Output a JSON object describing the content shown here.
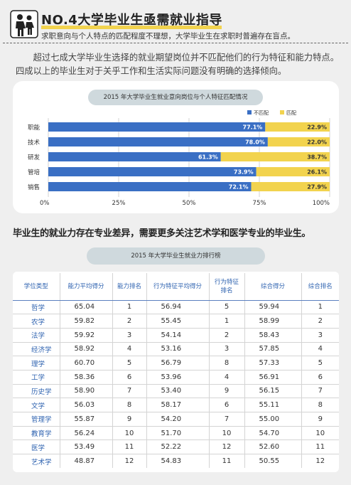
{
  "header": {
    "title": "NO.4大学毕业生亟需就业指导",
    "subtitle": "求职意向与个人特点的匹配程度不理想，大学毕业生在求职时普遍存在盲点。"
  },
  "intro": "超过七成大学毕业生选择的就业期望岗位并不匹配他们的行为特征和能力特点。四成以上的毕业生对于关乎工作和生活实际问题没有明确的选择倾向。",
  "colors": {
    "mismatch": "#3a6fc4",
    "match": "#f2d34e",
    "header_text": "#2f63b0"
  },
  "chart_data": {
    "type": "bar",
    "orientation": "horizontal",
    "stacked": true,
    "title": "2015 年大学毕业生就业意向岗位与个人特征匹配情况",
    "legend_position": "top-right",
    "categories": [
      "职能",
      "技术",
      "研发",
      "管培",
      "销售"
    ],
    "series": [
      {
        "name": "不匹配",
        "values": [
          77.1,
          78.0,
          61.3,
          73.9,
          72.1
        ],
        "labels": [
          "77.1%",
          "78.0%",
          "61.3%",
          "73.9%",
          "72.1%"
        ]
      },
      {
        "name": "匹配",
        "values": [
          22.9,
          22.0,
          38.7,
          26.1,
          27.9
        ],
        "labels": [
          "22.9%",
          "22.0%",
          "38.7%",
          "26.1%",
          "27.9%"
        ]
      }
    ],
    "xlim": [
      0,
      100
    ],
    "xticks": [
      "0%",
      "25%",
      "50%",
      "75%",
      "100%"
    ],
    "grid": true
  },
  "section_heading": "毕业生的就业力存在专业差异，需要更多关注艺术学和医学专业的毕业生。",
  "table": {
    "title": "2015 年大学毕业生就业力排行榜",
    "headers": [
      "学位类型",
      "能力平均得分",
      "能力排名",
      "行为特征平均得分",
      "行为特征\n排名",
      "综合得分",
      "综合排名"
    ],
    "rows": [
      [
        "哲学",
        "65.04",
        "1",
        "56.94",
        "5",
        "59.94",
        "1"
      ],
      [
        "农学",
        "59.82",
        "2",
        "55.45",
        "1",
        "58.99",
        "2"
      ],
      [
        "法学",
        "59.92",
        "3",
        "54.14",
        "2",
        "58.43",
        "3"
      ],
      [
        "经济学",
        "58.92",
        "4",
        "53.16",
        "3",
        "57.85",
        "4"
      ],
      [
        "理学",
        "60.70",
        "5",
        "56.79",
        "8",
        "57.33",
        "5"
      ],
      [
        "工学",
        "58.36",
        "6",
        "53.96",
        "4",
        "56.91",
        "6"
      ],
      [
        "历史学",
        "58.90",
        "7",
        "53.40",
        "9",
        "56.15",
        "7"
      ],
      [
        "文学",
        "56.03",
        "8",
        "58.17",
        "6",
        "55.11",
        "8"
      ],
      [
        "管理学",
        "55.87",
        "9",
        "54.20",
        "7",
        "55.00",
        "9"
      ],
      [
        "教育学",
        "56.24",
        "10",
        "51.70",
        "10",
        "54.70",
        "10"
      ],
      [
        "医学",
        "53.49",
        "11",
        "52.22",
        "12",
        "52.60",
        "11"
      ],
      [
        "艺术学",
        "48.87",
        "12",
        "54.83",
        "11",
        "50.55",
        "12"
      ]
    ]
  }
}
